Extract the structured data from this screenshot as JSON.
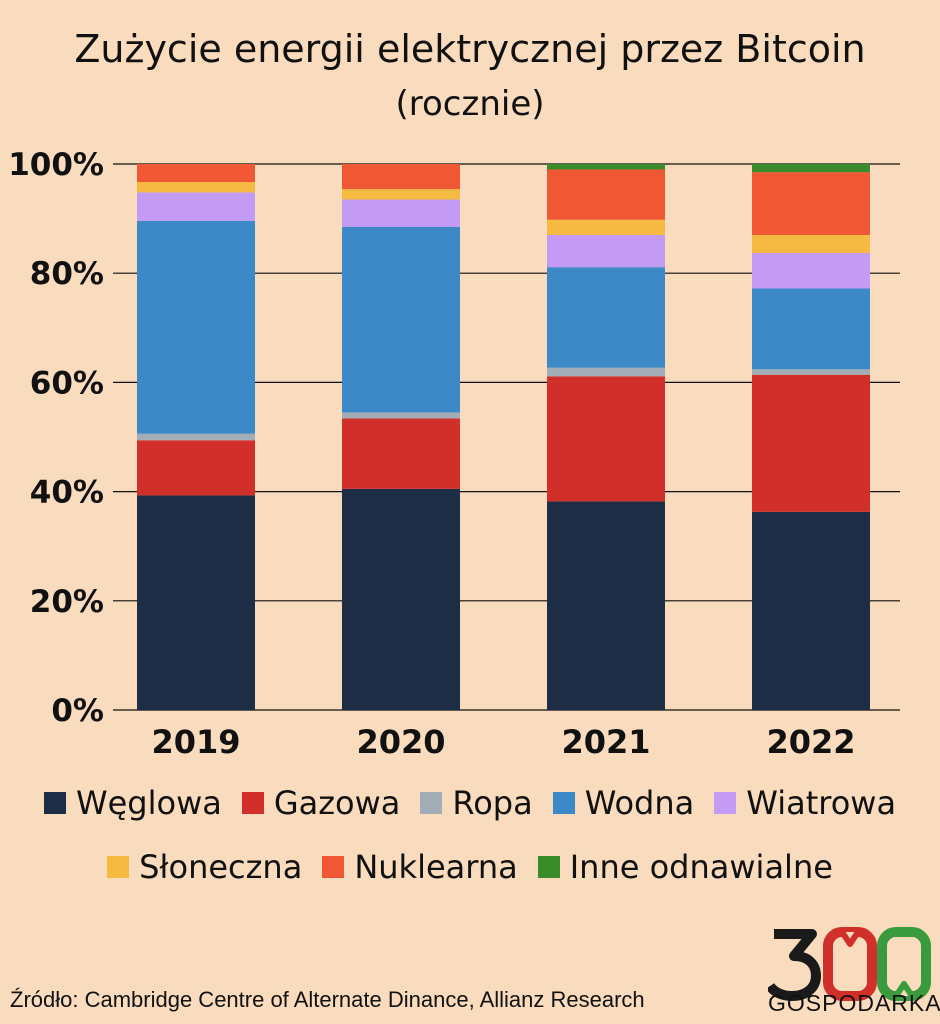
{
  "header": {
    "title": "Zużycie energii elektrycznej przez Bitcoin",
    "subtitle": "(rocznie)"
  },
  "chart_data": {
    "type": "bar",
    "stacked": true,
    "title": "Zużycie energii elektrycznej przez Bitcoin",
    "subtitle": "(rocznie)",
    "categories": [
      "2019",
      "2020",
      "2021",
      "2022"
    ],
    "ylim": [
      0,
      100
    ],
    "yticks": [
      "0%",
      "20%",
      "40%",
      "60%",
      "80%",
      "100%"
    ],
    "grid": true,
    "legend_position": "bottom",
    "series": [
      {
        "name": "Węglowa",
        "color": "#1d2d46",
        "values": [
          39.3,
          40.5,
          38.2,
          36.3
        ]
      },
      {
        "name": "Gazowa",
        "color": "#d12f2a",
        "values": [
          10.1,
          12.9,
          22.9,
          25.1
        ]
      },
      {
        "name": "Ropa",
        "color": "#a3adb7",
        "values": [
          1.2,
          1.1,
          1.6,
          1.0
        ]
      },
      {
        "name": "Wodna",
        "color": "#3d89c8",
        "values": [
          39.0,
          34.0,
          18.4,
          14.8
        ]
      },
      {
        "name": "Wiatrowa",
        "color": "#c39af4",
        "values": [
          5.2,
          5.0,
          5.9,
          6.5
        ]
      },
      {
        "name": "Słoneczna",
        "color": "#f6b941",
        "values": [
          1.9,
          1.9,
          2.8,
          3.3
        ]
      },
      {
        "name": "Nuklearna",
        "color": "#ef5735",
        "values": [
          3.3,
          4.6,
          9.2,
          11.5
        ]
      },
      {
        "name": "Inne odnawialne",
        "color": "#3a8c2b",
        "values": [
          0,
          0,
          1.0,
          1.5
        ]
      }
    ]
  },
  "source": "Źródło: Cambridge Centre of Alternate Dinance, Allianz Research",
  "logo": {
    "number": "300",
    "name": "GOSPODARKA",
    "colors": {
      "dark": "#1a1a1a",
      "red": "#d12f2a",
      "green": "#3a9a3e"
    }
  }
}
